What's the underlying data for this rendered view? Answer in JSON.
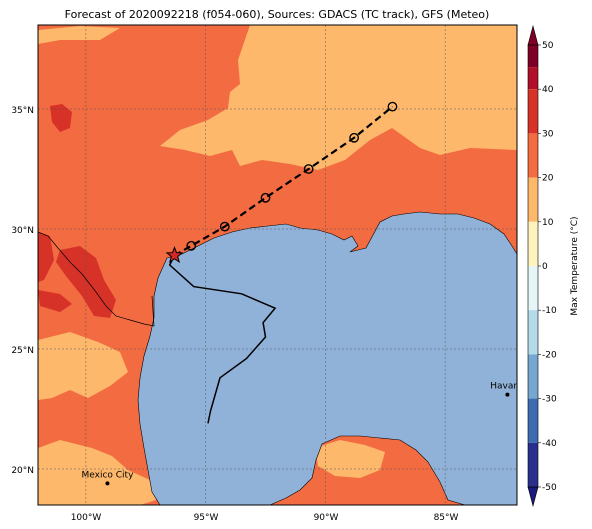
{
  "title": "Forecast of 2020092218 (f054-060), Sources: GDACS (TC track), GFS (Meteo)",
  "map": {
    "lon_range": [
      -102,
      -82
    ],
    "lat_range": [
      18.5,
      38.5
    ],
    "lon_ticks": [
      {
        "value": -100,
        "label": "100°W"
      },
      {
        "value": -95,
        "label": "95°W"
      },
      {
        "value": -90,
        "label": "90°W"
      },
      {
        "value": -85,
        "label": "85°W"
      }
    ],
    "lat_ticks": [
      {
        "value": 20,
        "label": "20°N"
      },
      {
        "value": 25,
        "label": "25°N"
      },
      {
        "value": 30,
        "label": "30°N"
      },
      {
        "value": 35,
        "label": "35°N"
      }
    ],
    "grid": true,
    "colors": {
      "ocean": "#90b2d8",
      "land_warm": "#f36b41",
      "land_mild": "#fdb86c",
      "land_hot": "#d63228",
      "track": "#000000",
      "storm_marker": "#d62728"
    }
  },
  "cities": [
    {
      "name": "Havana",
      "lon": -82.4,
      "lat": 23.1
    },
    {
      "name": "Mexico City",
      "lon": -99.1,
      "lat": 19.4
    }
  ],
  "forecast_track": [
    {
      "lon": -96.3,
      "lat": 28.9
    },
    {
      "lon": -95.6,
      "lat": 29.3
    },
    {
      "lon": -94.2,
      "lat": 30.1
    },
    {
      "lon": -92.5,
      "lat": 31.3
    },
    {
      "lon": -90.7,
      "lat": 32.5
    },
    {
      "lon": -88.8,
      "lat": 33.8
    },
    {
      "lon": -87.2,
      "lat": 35.1
    }
  ],
  "past_track": [
    {
      "lon": -94.9,
      "lat": 21.9
    },
    {
      "lon": -94.8,
      "lat": 22.4
    },
    {
      "lon": -94.4,
      "lat": 23.8
    },
    {
      "lon": -93.3,
      "lat": 24.6
    },
    {
      "lon": -92.5,
      "lat": 25.5
    },
    {
      "lon": -92.6,
      "lat": 26.1
    },
    {
      "lon": -92.1,
      "lat": 26.7
    },
    {
      "lon": -93.5,
      "lat": 27.3
    },
    {
      "lon": -95.5,
      "lat": 27.6
    },
    {
      "lon": -96.5,
      "lat": 28.5
    },
    {
      "lon": -96.3,
      "lat": 28.9
    }
  ],
  "current_position": {
    "lon": -96.3,
    "lat": 28.9
  },
  "colorbar": {
    "label": "Max Temperature (°C)",
    "ticks": [
      50,
      40,
      30,
      20,
      10,
      0,
      -10,
      -20,
      -30,
      -40,
      -50
    ],
    "bands": [
      {
        "from": 45,
        "to": 50,
        "color": "#7f0026"
      },
      {
        "from": 40,
        "to": 45,
        "color": "#b0102a"
      },
      {
        "from": 30,
        "to": 40,
        "color": "#d63228"
      },
      {
        "from": 20,
        "to": 30,
        "color": "#f36b41"
      },
      {
        "from": 10,
        "to": 20,
        "color": "#fdb86c"
      },
      {
        "from": 0,
        "to": 10,
        "color": "#fff2bd"
      },
      {
        "from": -10,
        "to": 0,
        "color": "#e6f6f8"
      },
      {
        "from": -20,
        "to": -10,
        "color": "#b3dbea"
      },
      {
        "from": -30,
        "to": -20,
        "color": "#77a7d0"
      },
      {
        "from": -40,
        "to": -30,
        "color": "#3f6cb0"
      },
      {
        "from": -50,
        "to": -40,
        "color": "#2a2f8e"
      }
    ],
    "extend_top_color": "#7f0026",
    "extend_bottom_color": "#1a1a80"
  }
}
